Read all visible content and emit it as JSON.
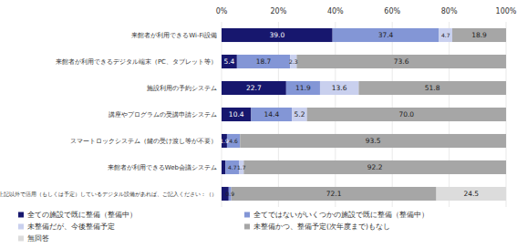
{
  "chart_data": {
    "type": "bar",
    "orientation": "horizontal",
    "stacked": true,
    "data_labels": true,
    "grid": true,
    "legend": "bottom",
    "categories": [
      "来館者が利用できるWi-Fi設備",
      "来館者が利用できるデジタル端末（PC、タブレット等）",
      "施設利用の予約システム",
      "講座やプログラムの受講申請システム",
      "スマートロックシステム（鍵の受け渡し等が不要）",
      "来館者が利用できるWeb会議システム",
      "上記以外で活用（もしくは予定）しているデジタル設備があれば、ご記入ください：（）"
    ],
    "xlim": [
      0,
      100
    ],
    "xticks": [
      {
        "value": 0,
        "label": "0%"
      },
      {
        "value": 20,
        "label": "20%"
      },
      {
        "value": 40,
        "label": "40%"
      },
      {
        "value": 60,
        "label": "60%"
      },
      {
        "value": 80,
        "label": "80%"
      },
      {
        "value": 100,
        "label": "100%"
      }
    ],
    "series": [
      {
        "name": "全ての施設で既に整備（整備中）",
        "color": "#17176e",
        "values": [
          39.0,
          5.4,
          22.7,
          10.4,
          1.9,
          1.4,
          2.5
        ],
        "value_labels": [
          "39.0",
          "5.4",
          "22.7",
          "10.4",
          "1.9",
          null,
          null
        ]
      },
      {
        "name": "全てではないがいくつかの施設で既に整備（整備中）",
        "color": "#8396d6",
        "values": [
          37.4,
          18.7,
          11.9,
          14.4,
          4.6,
          4.7,
          0.9
        ],
        "value_labels": [
          "37.4",
          "18.7",
          "11.9",
          "14.4",
          "4.6",
          "4.7",
          "0.9"
        ]
      },
      {
        "name": "未整備だが、今後整備予定",
        "color": "#c9d0ee",
        "values": [
          4.7,
          2.3,
          13.6,
          5.2,
          0.0,
          1.7,
          0.0
        ],
        "value_labels": [
          "4.7",
          "2.3",
          "13.6",
          "5.2",
          null,
          "1.7",
          null
        ]
      },
      {
        "name": "未整備かつ、整備予定(次年度まで)もなし",
        "color": "#a6a6a6",
        "values": [
          18.9,
          73.6,
          51.8,
          70.0,
          93.5,
          92.2,
          72.1
        ],
        "value_labels": [
          "18.9",
          "73.6",
          "51.8",
          "70.0",
          "93.5",
          "92.2",
          "72.1"
        ]
      },
      {
        "name": "無回答",
        "color": "#dcdcdc",
        "values": [
          0.0,
          0.0,
          0.0,
          0.0,
          0.0,
          0.0,
          24.5
        ],
        "value_labels": [
          null,
          null,
          null,
          null,
          null,
          null,
          "24.5"
        ]
      }
    ]
  }
}
